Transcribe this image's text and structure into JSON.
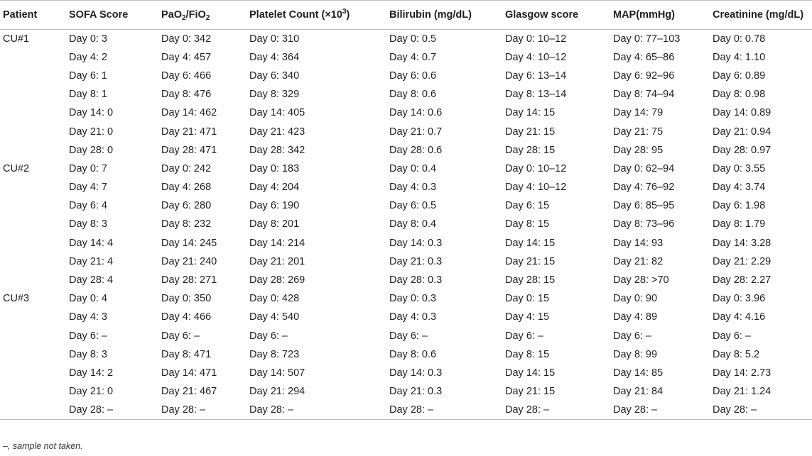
{
  "headers": {
    "patient": "Patient",
    "sofa": "SOFA Score",
    "pao2_pre": "PaO",
    "pao2_sub": "2",
    "pao2_mid": "/FiO",
    "fio2_sub": "2",
    "platelet_pre": "Platelet Count (×10",
    "platelet_sup": "3",
    "platelet_post": ")",
    "bilirubin": "Bilirubin (mg/dL)",
    "glasgow": "Glasgow score",
    "map": "MAP(mmHg)",
    "creatinine": "Creatinine (mg/dL)"
  },
  "rows": [
    {
      "patient": "CU#1",
      "sofa": "Day 0: 3",
      "pao2": "Day 0: 342",
      "platelet": "Day 0: 310",
      "bilirubin": "Day 0: 0.5",
      "glasgow": "Day 0: 10–12",
      "map": "Day 0: 77–103",
      "creatinine": "Day 0: 0.78"
    },
    {
      "patient": "",
      "sofa": "Day 4: 2",
      "pao2": "Day 4: 457",
      "platelet": "Day 4: 364",
      "bilirubin": "Day 4: 0.7",
      "glasgow": "Day 4: 10–12",
      "map": "Day 4: 65–86",
      "creatinine": "Day 4: 1.10"
    },
    {
      "patient": "",
      "sofa": "Day 6: 1",
      "pao2": "Day 6: 466",
      "platelet": "Day 6: 340",
      "bilirubin": "Day 6: 0.6",
      "glasgow": "Day 6: 13–14",
      "map": "Day 6: 92–96",
      "creatinine": "Day 6: 0.89"
    },
    {
      "patient": "",
      "sofa": "Day 8: 1",
      "pao2": "Day 8: 476",
      "platelet": "Day 8: 329",
      "bilirubin": "Day 8: 0.6",
      "glasgow": "Day 8: 13–14",
      "map": "Day 8: 74–94",
      "creatinine": "Day 8: 0.98"
    },
    {
      "patient": "",
      "sofa": "Day 14: 0",
      "pao2": "Day 14: 462",
      "platelet": "Day 14: 405",
      "bilirubin": "Day 14: 0.6",
      "glasgow": "Day 14: 15",
      "map": "Day 14: 79",
      "creatinine": "Day 14: 0.89"
    },
    {
      "patient": "",
      "sofa": "Day 21: 0",
      "pao2": "Day 21: 471",
      "platelet": "Day 21: 423",
      "bilirubin": "Day 21: 0.7",
      "glasgow": "Day 21: 15",
      "map": "Day 21: 75",
      "creatinine": "Day 21: 0.94"
    },
    {
      "patient": "",
      "sofa": "Day 28: 0",
      "pao2": "Day 28: 471",
      "platelet": "Day 28: 342",
      "bilirubin": "Day 28: 0.6",
      "glasgow": "Day 28: 15",
      "map": "Day 28: 95",
      "creatinine": "Day 28: 0.97"
    },
    {
      "patient": "CU#2",
      "sofa": "Day 0: 7",
      "pao2": "Day 0: 242",
      "platelet": "Day 0: 183",
      "bilirubin": "Day 0: 0.4",
      "glasgow": "Day 0: 10–12",
      "map": "Day 0: 62–94",
      "creatinine": "Day 0: 3.55"
    },
    {
      "patient": "",
      "sofa": "Day 4: 7",
      "pao2": "Day 4: 268",
      "platelet": "Day 4: 204",
      "bilirubin": "Day 4: 0.3",
      "glasgow": "Day 4: 10–12",
      "map": "Day 4: 76–92",
      "creatinine": "Day 4: 3.74"
    },
    {
      "patient": "",
      "sofa": "Day 6: 4",
      "pao2": "Day 6: 280",
      "platelet": "Day 6: 190",
      "bilirubin": "Day 6: 0.5",
      "glasgow": "Day 6: 15",
      "map": "Day 6: 85–95",
      "creatinine": "Day 6: 1.98"
    },
    {
      "patient": "",
      "sofa": "Day 8: 3",
      "pao2": "Day 8: 232",
      "platelet": "Day 8: 201",
      "bilirubin": "Day 8: 0.4",
      "glasgow": "Day 8: 15",
      "map": "Day 8: 73–96",
      "creatinine": "Day 8: 1.79"
    },
    {
      "patient": "",
      "sofa": "Day 14: 4",
      "pao2": "Day 14: 245",
      "platelet": "Day 14: 214",
      "bilirubin": "Day 14: 0.3",
      "glasgow": "Day 14: 15",
      "map": "Day 14: 93",
      "creatinine": "Day 14: 3.28"
    },
    {
      "patient": "",
      "sofa": "Day 21: 4",
      "pao2": "Day 21: 240",
      "platelet": "Day 21: 201",
      "bilirubin": "Day 21: 0.3",
      "glasgow": "Day 21: 15",
      "map": "Day 21: 82",
      "creatinine": "Day 21: 2.29"
    },
    {
      "patient": "",
      "sofa": "Day 28: 4",
      "pao2": "Day 28: 271",
      "platelet": "Day 28: 269",
      "bilirubin": "Day 28: 0.3",
      "glasgow": "Day 28: 15",
      "map": "Day 28: >70",
      "creatinine": "Day 28: 2.27"
    },
    {
      "patient": "CU#3",
      "sofa": "Day 0: 4",
      "pao2": "Day 0: 350",
      "platelet": "Day 0: 428",
      "bilirubin": "Day 0: 0.3",
      "glasgow": "Day 0: 15",
      "map": "Day 0: 90",
      "creatinine": "Day 0: 3.96"
    },
    {
      "patient": "",
      "sofa": "Day 4: 3",
      "pao2": "Day 4: 466",
      "platelet": "Day 4: 540",
      "bilirubin": "Day 4: 0.3",
      "glasgow": "Day 4: 15",
      "map": "Day 4: 89",
      "creatinine": "Day 4: 4.16"
    },
    {
      "patient": "",
      "sofa": "Day 6: –",
      "pao2": "Day 6: –",
      "platelet": "Day 6: –",
      "bilirubin": "Day 6: –",
      "glasgow": "Day 6: –",
      "map": "Day 6: –",
      "creatinine": "Day 6: –"
    },
    {
      "patient": "",
      "sofa": "Day 8: 3",
      "pao2": "Day 8: 471",
      "platelet": "Day 8: 723",
      "bilirubin": "Day 8: 0.6",
      "glasgow": "Day 8: 15",
      "map": "Day 8: 99",
      "creatinine": "Day 8: 5.2"
    },
    {
      "patient": "",
      "sofa": "Day 14: 2",
      "pao2": "Day 14: 471",
      "platelet": "Day 14: 507",
      "bilirubin": "Day 14: 0.3",
      "glasgow": "Day 14: 15",
      "map": "Day 14: 85",
      "creatinine": "Day 14: 2.73"
    },
    {
      "patient": "",
      "sofa": "Day 21: 0",
      "pao2": "Day 21: 467",
      "platelet": "Day 21: 294",
      "bilirubin": "Day 21: 0.3",
      "glasgow": "Day 21: 15",
      "map": "Day 21: 84",
      "creatinine": "Day 21: 1.24"
    },
    {
      "patient": "",
      "sofa": "Day 28: –",
      "pao2": "Day 28: –",
      "platelet": "Day 28: –",
      "bilirubin": "Day 28: –",
      "glasgow": "Day 28: –",
      "map": "Day 28: –",
      "creatinine": "Day 28: –"
    }
  ],
  "footnote": "–, sample not taken."
}
